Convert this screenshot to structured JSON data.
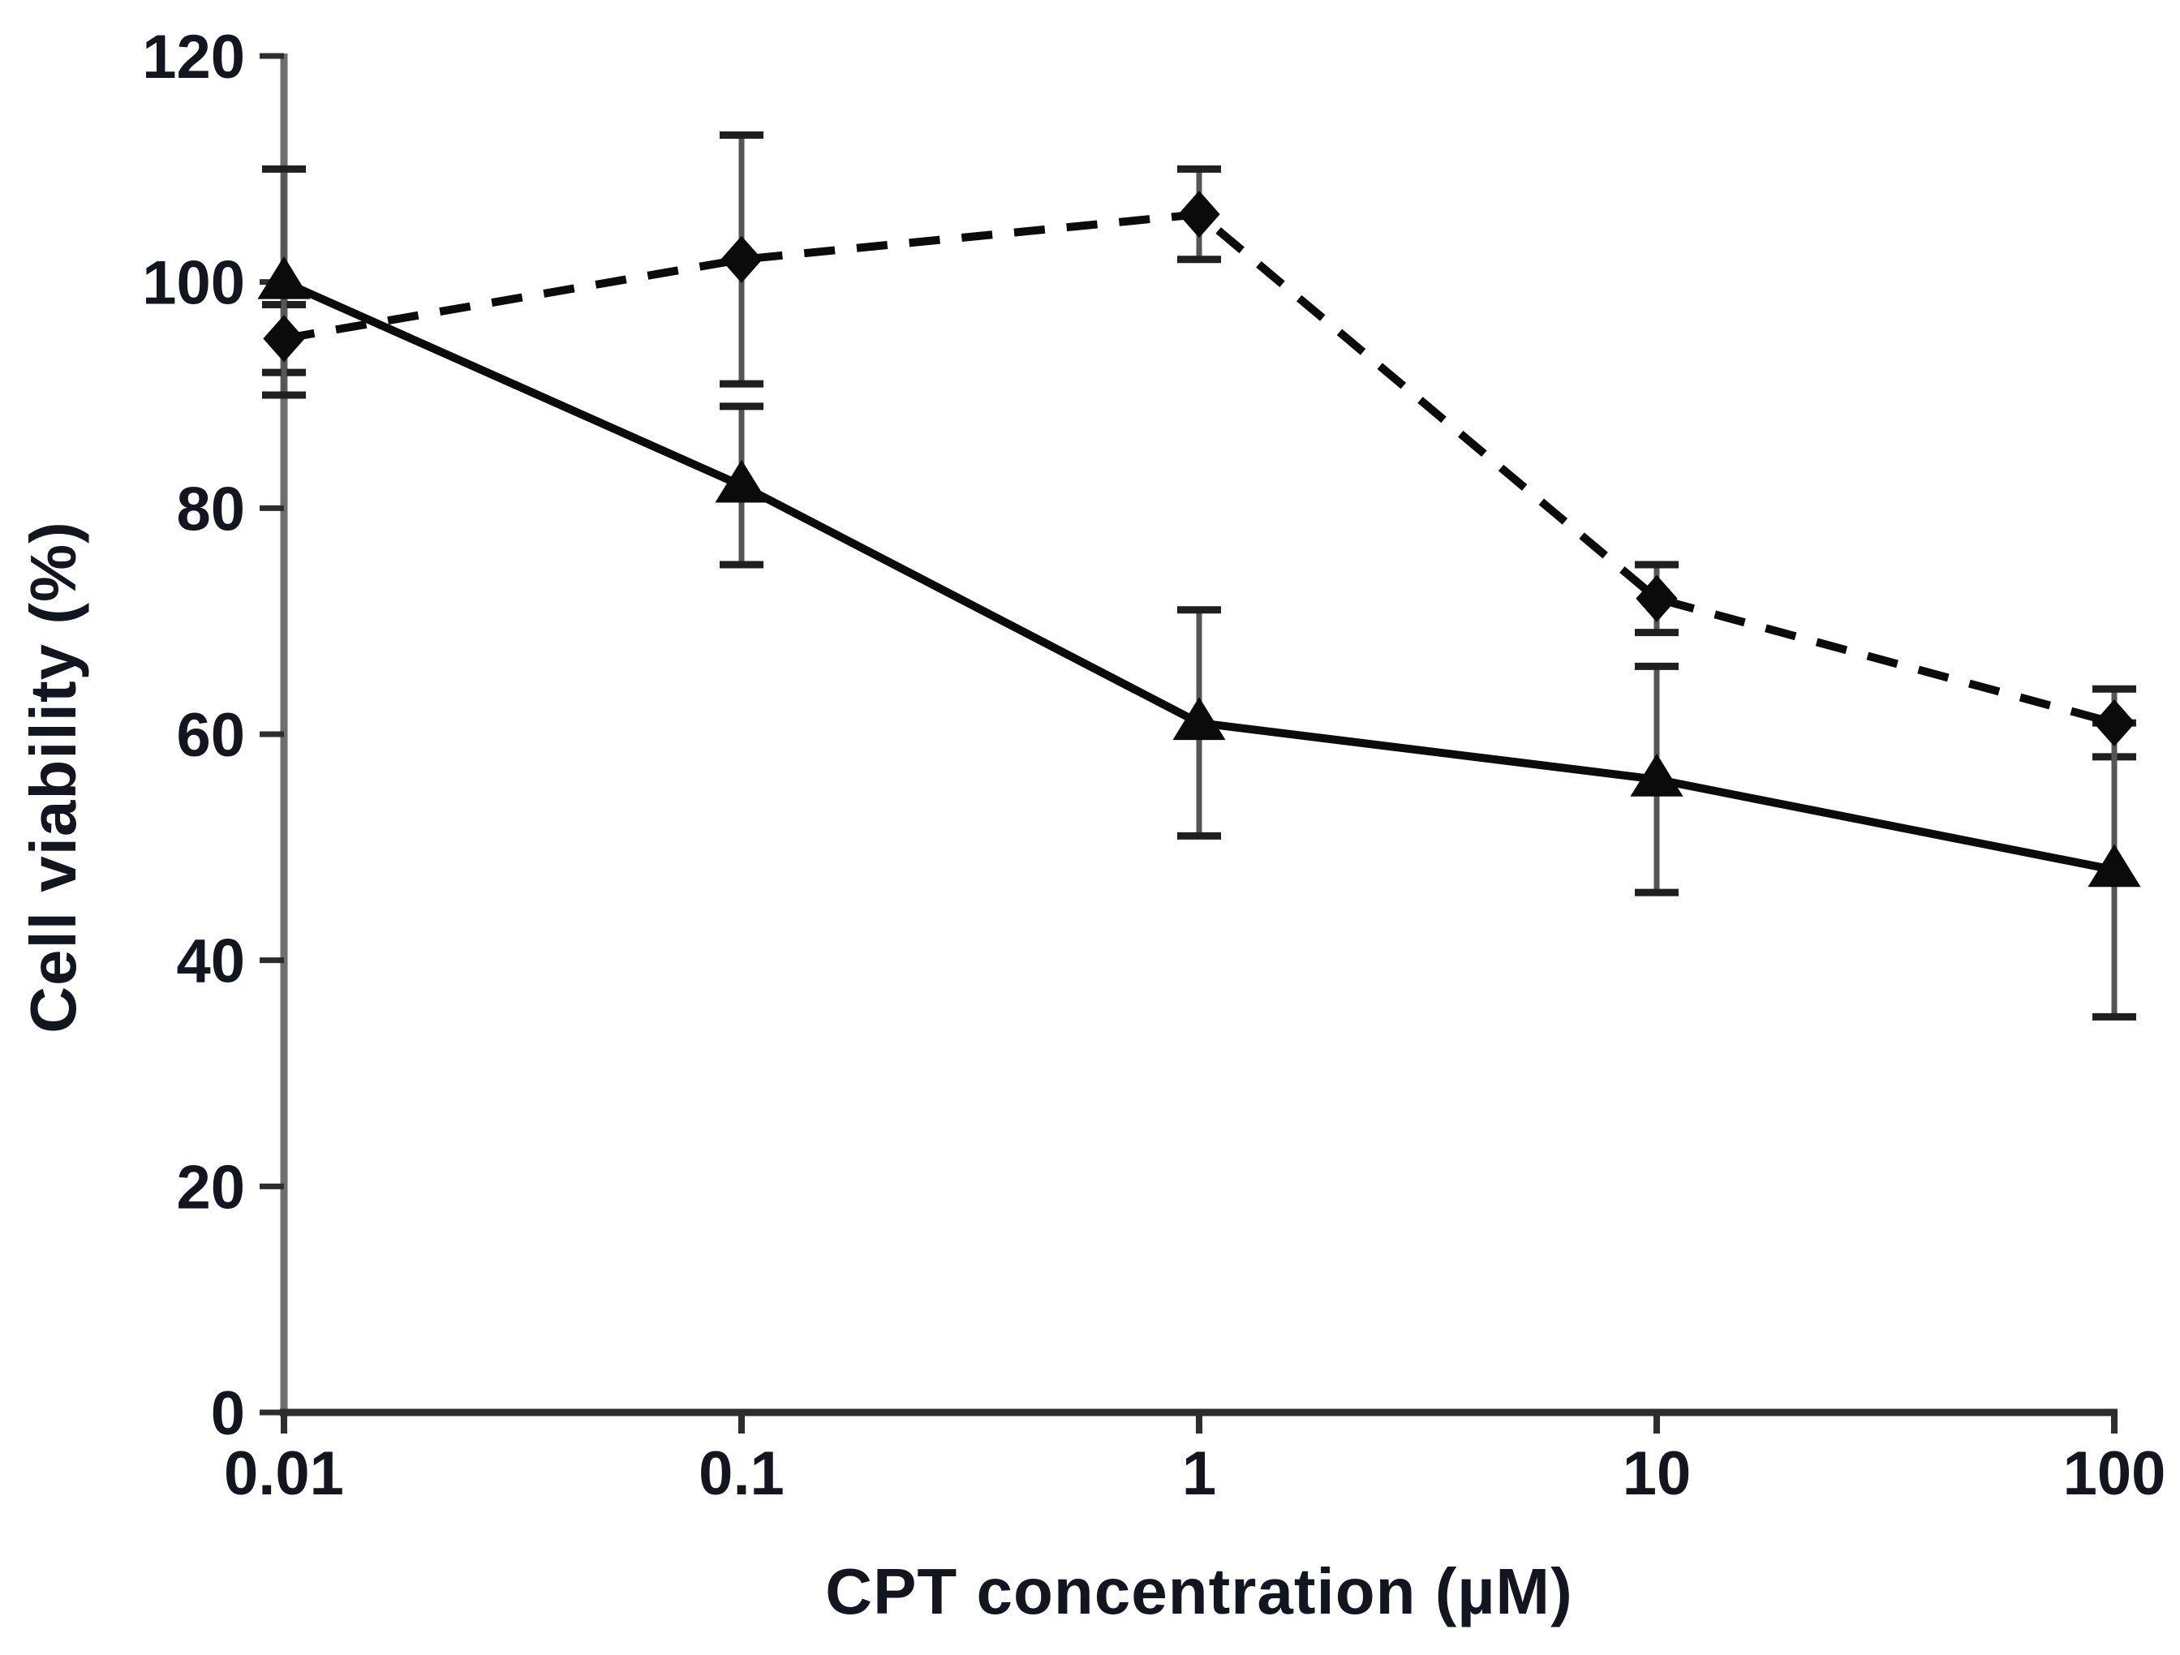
{
  "figure": {
    "background": "#ffffff",
    "text_color": "#13161f",
    "y_axis_color": "#6e6e6e",
    "x_axis_color": "#2d2d2d",
    "tick_color": "#2d2d2d",
    "error_bar_color": "#565656",
    "error_cap_color": "#1f1f1f",
    "series_color": "#0b0b0b"
  },
  "chart_data": {
    "type": "line",
    "title": "",
    "xlabel": "CPT concentration  (µM)",
    "ylabel": "Cell viability (%)",
    "x_scale": "log",
    "x": [
      0.01,
      0.1,
      1,
      10,
      100
    ],
    "x_tick_labels": [
      "0.01",
      "0.1",
      "1",
      "10",
      "100"
    ],
    "y_ticks": [
      0,
      20,
      40,
      60,
      80,
      100,
      120
    ],
    "y_tick_labels": [
      "0",
      "20",
      "40",
      "60",
      "80",
      "100",
      "120"
    ],
    "ylim": [
      0,
      120
    ],
    "grid": false,
    "legend_position": "none",
    "series": [
      {
        "name": "dashed line with diamond markers",
        "marker": "diamond",
        "line_style": "dashed",
        "values": [
          95,
          102,
          106,
          72,
          61
        ],
        "error": [
          3,
          11,
          4,
          3,
          3
        ]
      },
      {
        "name": "solid line with triangle markers",
        "marker": "triangle",
        "line_style": "solid",
        "values": [
          100,
          82,
          61,
          56,
          48
        ],
        "error": [
          10,
          7,
          10,
          10,
          13
        ]
      }
    ]
  }
}
